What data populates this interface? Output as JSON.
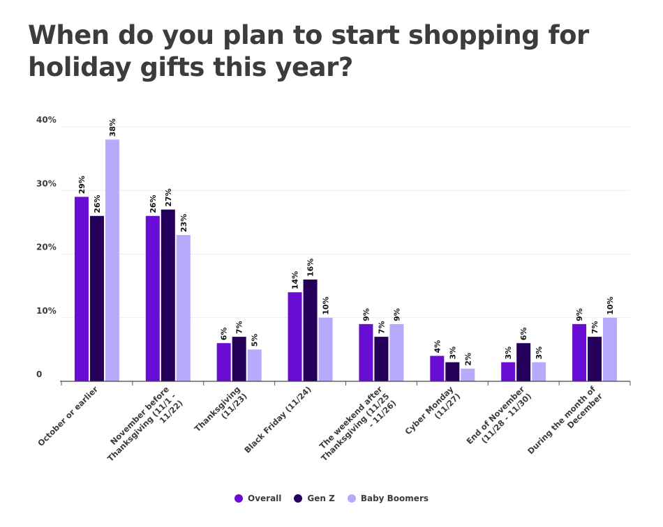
{
  "title": "When do you plan to start shopping for holiday gifts this year?",
  "chart_data": {
    "type": "bar",
    "title": "When do you plan to start shopping for holiday gifts this year?",
    "xlabel": "",
    "ylabel": "",
    "ylim": [
      0,
      40
    ],
    "yticks": [
      {
        "value": 0,
        "label": "0"
      },
      {
        "value": 10,
        "label": "10%"
      },
      {
        "value": 20,
        "label": "20%"
      },
      {
        "value": 30,
        "label": "30%"
      },
      {
        "value": 40,
        "label": "40%"
      }
    ],
    "grid": true,
    "legend_position": "bottom",
    "categories": [
      [
        "October or earlier"
      ],
      [
        "November before",
        "Thanksgiving (11/1 -",
        "11/22)"
      ],
      [
        "Thanksgiving",
        "(11/23)"
      ],
      [
        "Black Friday (11/24)"
      ],
      [
        "The weekend after",
        "Thanksgiving (11/25",
        "- 11/26)"
      ],
      [
        "Cyber Monday",
        "(11/27)"
      ],
      [
        "End of November",
        "(11/28 - 11/30)"
      ],
      [
        "During the month of",
        "December"
      ]
    ],
    "series": [
      {
        "name": "Overall",
        "color": "#6a0dd4",
        "values": [
          29,
          26,
          6,
          14,
          9,
          4,
          3,
          9
        ],
        "labels": [
          "29%",
          "26%",
          "6%",
          "14%",
          "9%",
          "4%",
          "3%",
          "9%"
        ]
      },
      {
        "name": "Gen Z",
        "color": "#24005a",
        "values": [
          26,
          27,
          7,
          16,
          7,
          3,
          6,
          7
        ],
        "labels": [
          "26%",
          "27%",
          "7%",
          "16%",
          "7%",
          "3%",
          "6%",
          "7%"
        ]
      },
      {
        "name": "Baby Boomers",
        "color": "#b7a9fb",
        "values": [
          38,
          23,
          5,
          10,
          9,
          2,
          3,
          10
        ],
        "labels": [
          "38%",
          "23%",
          "5%",
          "10%",
          "9%",
          "2%",
          "3%",
          "10%"
        ]
      }
    ]
  }
}
